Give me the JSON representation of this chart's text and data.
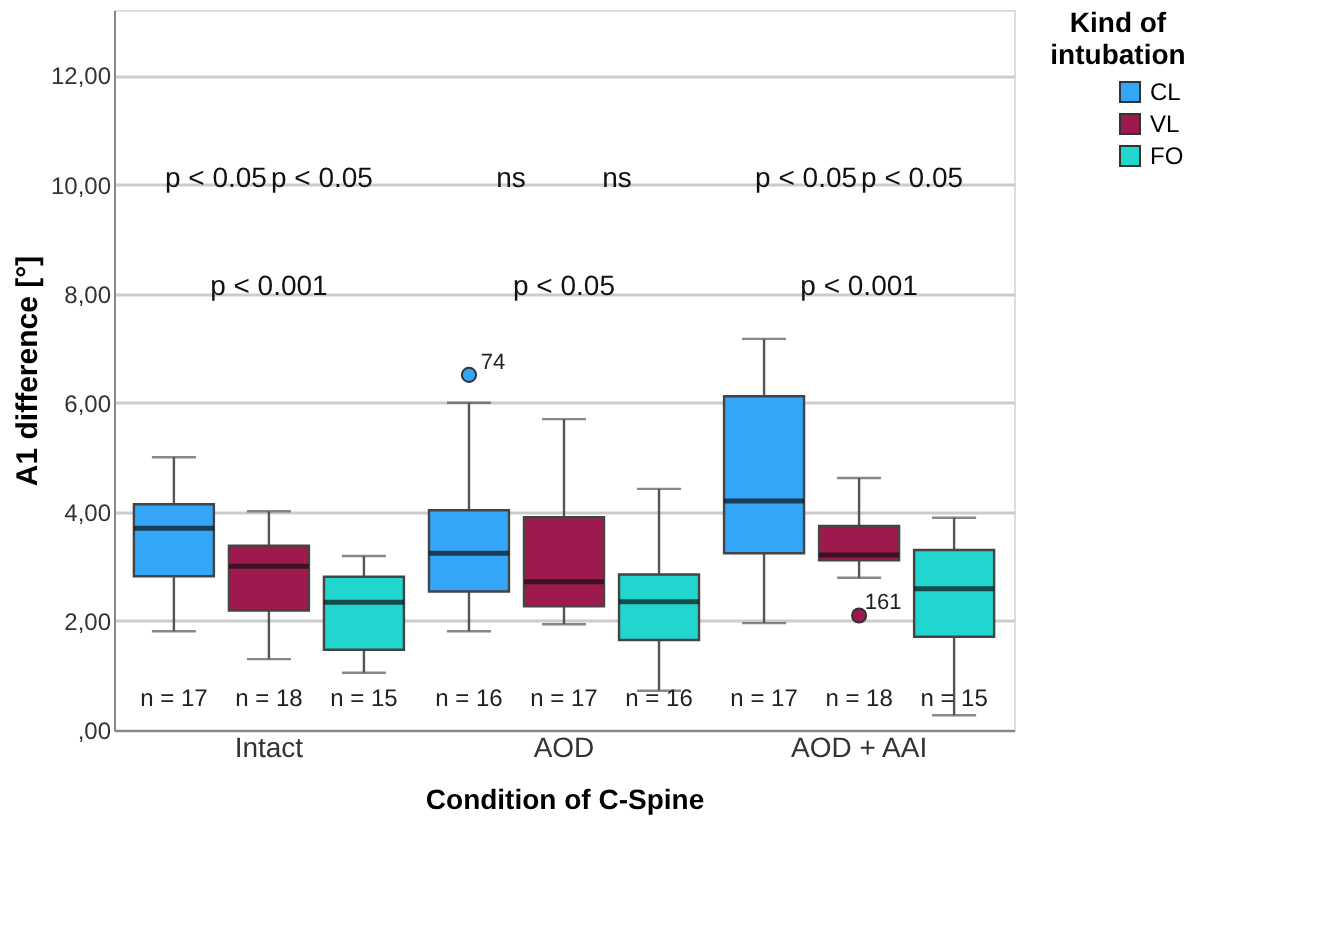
{
  "chart_data": {
    "type": "box",
    "xlabel": "Condition of C-Spine",
    "ylabel": "A1 difference [°]",
    "legend_title": "Kind of intubation",
    "legend": "top right",
    "grid": "y",
    "categories": [
      "Intact",
      "AOD",
      "AOD + AAI"
    ],
    "ylim": [
      0,
      13.2
    ],
    "yticks": [
      {
        "value": 0,
        "label": ",00"
      },
      {
        "value": 2,
        "label": "2,00"
      },
      {
        "value": 4,
        "label": "4,00"
      },
      {
        "value": 6,
        "label": "6,00"
      },
      {
        "value": 8,
        "label": "8,00"
      },
      {
        "value": 10,
        "label": "10,00"
      },
      {
        "value": 12,
        "label": "12,00"
      }
    ],
    "series": [
      {
        "name": "CL",
        "color": "#33a6f7",
        "value_labels": [
          "n = 17",
          "n = 16",
          "n = 17"
        ],
        "boxes": [
          {
            "low": 1.81,
            "q1": 2.82,
            "median": 3.7,
            "q3": 4.14,
            "high": 5.0
          },
          {
            "low": 1.81,
            "q1": 2.54,
            "median": 3.24,
            "q3": 4.03,
            "high": 6.0,
            "outliers": [
              6.51
            ]
          },
          {
            "low": 1.96,
            "q1": 3.24,
            "median": 4.2,
            "q3": 6.12,
            "high": 7.17
          }
        ]
      },
      {
        "name": "VL",
        "color": "#9e1a4e",
        "value_labels": [
          "n = 18",
          "n = 17",
          "n = 18"
        ],
        "boxes": [
          {
            "low": 1.3,
            "q1": 2.19,
            "median": 3.0,
            "q3": 3.38,
            "high": 4.01
          },
          {
            "low": 1.94,
            "q1": 2.27,
            "median": 2.72,
            "q3": 3.9,
            "high": 5.7
          },
          {
            "low": 2.79,
            "q1": 3.11,
            "median": 3.21,
            "q3": 3.74,
            "high": 4.62,
            "outliers": [
              2.1
            ]
          }
        ]
      },
      {
        "name": "FO",
        "color": "#22d6d0",
        "value_labels": [
          "n = 15",
          "n = 16",
          "n = 15"
        ],
        "boxes": [
          {
            "low": 1.05,
            "q1": 1.47,
            "median": 2.34,
            "q3": 2.81,
            "high": 3.19
          },
          {
            "low": 0.72,
            "q1": 1.65,
            "median": 2.35,
            "q3": 2.85,
            "high": 4.42
          },
          {
            "low": 0.27,
            "q1": 1.71,
            "median": 2.59,
            "q3": 3.3,
            "high": 3.89
          }
        ]
      }
    ],
    "annotations": [
      "p < 0.05",
      "p < 0.05",
      "p < 0.001",
      "ns",
      "ns",
      "p < 0.05",
      "p < 0.05",
      "p < 0.05",
      "p < 0.001",
      "74",
      "161"
    ]
  }
}
